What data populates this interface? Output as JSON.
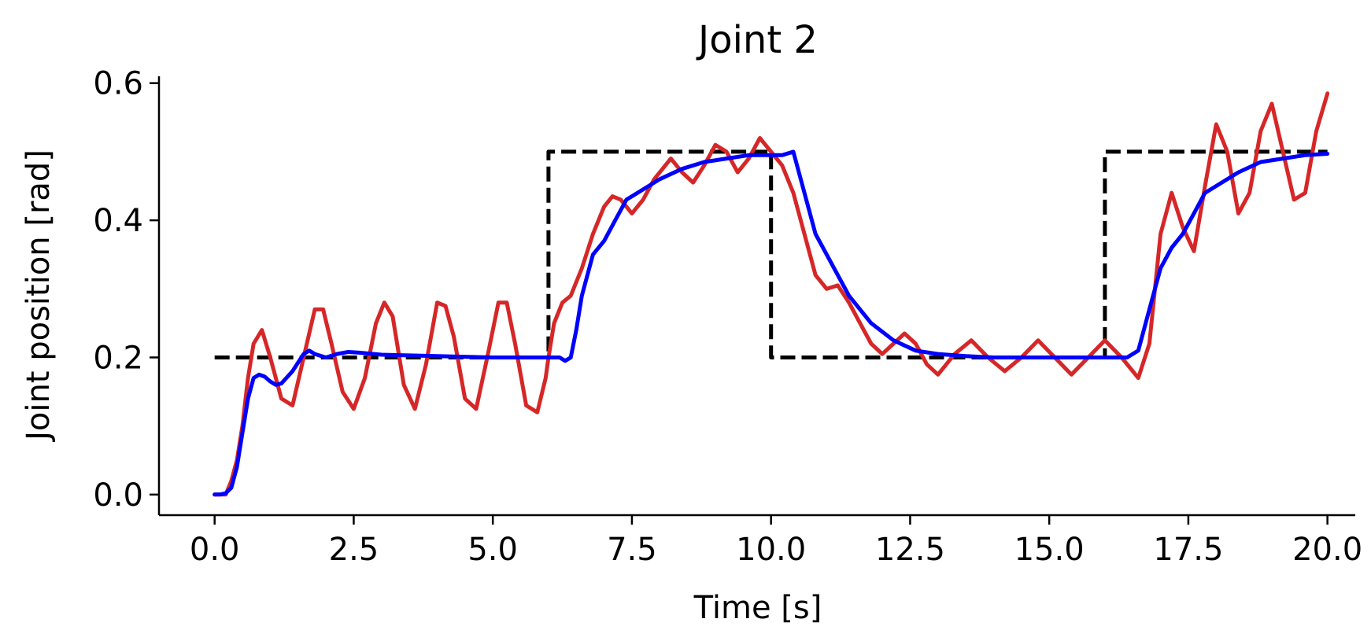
{
  "chart_data": {
    "type": "line",
    "title": "Joint 2",
    "xlabel": "Time [s]",
    "ylabel": "Joint position [rad]",
    "xlim": [
      -1.0,
      20.5
    ],
    "ylim": [
      -0.03,
      0.61
    ],
    "xticks": [
      0.0,
      2.5,
      5.0,
      7.5,
      10.0,
      12.5,
      15.0,
      17.5,
      20.0
    ],
    "xtick_labels": [
      "0.0",
      "2.5",
      "5.0",
      "7.5",
      "10.0",
      "12.5",
      "15.0",
      "17.5",
      "20.0"
    ],
    "yticks": [
      0.0,
      0.2,
      0.4,
      0.6
    ],
    "ytick_labels": [
      "0.0",
      "0.2",
      "0.4",
      "0.6"
    ],
    "grid": false,
    "legend": "none",
    "series": [
      {
        "color": "#000000",
        "style": "dashed",
        "x": [
          0.0,
          6.0,
          6.0,
          10.0,
          10.0,
          16.0,
          16.0,
          20.0
        ],
        "y": [
          0.2,
          0.2,
          0.5,
          0.5,
          0.2,
          0.2,
          0.5,
          0.5
        ]
      },
      {
        "color": "#d62728",
        "style": "solid",
        "x": [
          0.0,
          0.1,
          0.2,
          0.3,
          0.4,
          0.5,
          0.6,
          0.7,
          0.85,
          1.0,
          1.2,
          1.4,
          1.6,
          1.8,
          1.95,
          2.1,
          2.3,
          2.5,
          2.7,
          2.9,
          3.05,
          3.2,
          3.4,
          3.6,
          3.8,
          4.0,
          4.15,
          4.3,
          4.5,
          4.7,
          4.9,
          5.1,
          5.25,
          5.4,
          5.6,
          5.8,
          5.95,
          6.0,
          6.1,
          6.25,
          6.4,
          6.6,
          6.8,
          7.0,
          7.15,
          7.3,
          7.5,
          7.7,
          7.9,
          8.0,
          8.2,
          8.4,
          8.6,
          8.8,
          9.0,
          9.2,
          9.4,
          9.6,
          9.8,
          10.0,
          10.2,
          10.4,
          10.6,
          10.8,
          11.0,
          11.2,
          11.4,
          11.6,
          11.8,
          12.0,
          12.2,
          12.4,
          12.6,
          12.8,
          13.0,
          13.3,
          13.6,
          13.9,
          14.2,
          14.5,
          14.8,
          15.1,
          15.4,
          15.7,
          16.0,
          16.3,
          16.6,
          16.8,
          17.0,
          17.2,
          17.4,
          17.6,
          17.8,
          18.0,
          18.2,
          18.4,
          18.6,
          18.8,
          19.0,
          19.2,
          19.4,
          19.6,
          19.8,
          20.0
        ],
        "y": [
          0.0,
          0.0,
          0.0,
          0.02,
          0.05,
          0.1,
          0.17,
          0.22,
          0.24,
          0.2,
          0.14,
          0.13,
          0.2,
          0.27,
          0.27,
          0.22,
          0.15,
          0.125,
          0.17,
          0.25,
          0.28,
          0.26,
          0.16,
          0.125,
          0.19,
          0.28,
          0.275,
          0.23,
          0.14,
          0.125,
          0.2,
          0.28,
          0.28,
          0.22,
          0.13,
          0.12,
          0.17,
          0.2,
          0.25,
          0.28,
          0.29,
          0.33,
          0.38,
          0.42,
          0.435,
          0.43,
          0.41,
          0.43,
          0.46,
          0.47,
          0.49,
          0.47,
          0.455,
          0.48,
          0.51,
          0.5,
          0.47,
          0.49,
          0.52,
          0.5,
          0.48,
          0.44,
          0.38,
          0.32,
          0.3,
          0.305,
          0.28,
          0.25,
          0.22,
          0.205,
          0.22,
          0.235,
          0.22,
          0.19,
          0.175,
          0.205,
          0.225,
          0.2,
          0.18,
          0.2,
          0.225,
          0.2,
          0.175,
          0.2,
          0.225,
          0.2,
          0.17,
          0.22,
          0.38,
          0.44,
          0.39,
          0.355,
          0.45,
          0.54,
          0.5,
          0.41,
          0.44,
          0.53,
          0.57,
          0.5,
          0.43,
          0.44,
          0.53,
          0.585
        ]
      },
      {
        "color": "#0000ff",
        "style": "solid",
        "x": [
          0.0,
          0.1,
          0.2,
          0.3,
          0.4,
          0.5,
          0.6,
          0.7,
          0.8,
          0.9,
          1.0,
          1.1,
          1.2,
          1.4,
          1.6,
          1.7,
          1.8,
          2.0,
          2.2,
          2.4,
          2.6,
          3.0,
          3.5,
          4.0,
          4.5,
          5.0,
          5.5,
          6.0,
          6.2,
          6.3,
          6.4,
          6.5,
          6.6,
          6.8,
          7.0,
          7.2,
          7.4,
          7.6,
          8.0,
          8.4,
          8.8,
          9.2,
          9.6,
          10.0,
          10.2,
          10.4,
          10.6,
          10.8,
          11.0,
          11.4,
          11.8,
          12.2,
          12.6,
          13.0,
          13.5,
          14.0,
          14.5,
          15.0,
          15.5,
          16.0,
          16.2,
          16.4,
          16.6,
          16.8,
          17.0,
          17.2,
          17.4,
          17.6,
          17.8,
          18.0,
          18.4,
          18.8,
          19.2,
          19.6,
          20.0
        ],
        "y": [
          0.0,
          0.0,
          0.002,
          0.01,
          0.04,
          0.09,
          0.14,
          0.17,
          0.175,
          0.172,
          0.165,
          0.16,
          0.162,
          0.18,
          0.205,
          0.21,
          0.205,
          0.2,
          0.205,
          0.208,
          0.207,
          0.204,
          0.203,
          0.202,
          0.201,
          0.2,
          0.2,
          0.2,
          0.2,
          0.195,
          0.2,
          0.24,
          0.29,
          0.35,
          0.37,
          0.4,
          0.43,
          0.44,
          0.46,
          0.475,
          0.485,
          0.49,
          0.495,
          0.495,
          0.495,
          0.5,
          0.44,
          0.38,
          0.35,
          0.29,
          0.25,
          0.225,
          0.21,
          0.205,
          0.202,
          0.2,
          0.2,
          0.2,
          0.2,
          0.2,
          0.2,
          0.2,
          0.21,
          0.27,
          0.33,
          0.36,
          0.38,
          0.41,
          0.44,
          0.45,
          0.47,
          0.485,
          0.49,
          0.495,
          0.497
        ]
      }
    ]
  }
}
